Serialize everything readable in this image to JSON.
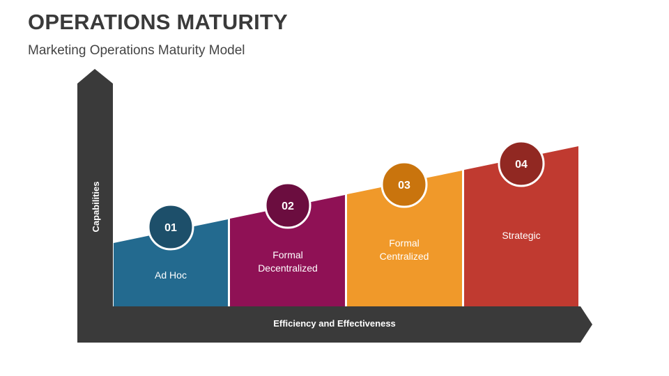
{
  "header": {
    "title": "OPERATIONS MATURITY",
    "subtitle": "Marketing Operations Maturity Model"
  },
  "axes": {
    "y_label": "Capabilities",
    "x_label": "Efficiency and Effectiveness"
  },
  "stages": [
    {
      "number": "01",
      "label_line1": "Ad Hoc",
      "label_line2": "",
      "color": "#236a8f",
      "circle_color": "#1d4f6a"
    },
    {
      "number": "02",
      "label_line1": "Formal",
      "label_line2": "Decentralized",
      "color": "#8f1155",
      "circle_color": "#6b0d3f"
    },
    {
      "number": "03",
      "label_line1": "Formal",
      "label_line2": "Centralized",
      "color": "#f0992a",
      "circle_color": "#c9740d"
    },
    {
      "number": "04",
      "label_line1": "Strategic",
      "label_line2": "",
      "color": "#c03a30",
      "circle_color": "#912822"
    }
  ],
  "colors": {
    "axis": "#3a3a3a",
    "title": "#3a3a3a"
  }
}
